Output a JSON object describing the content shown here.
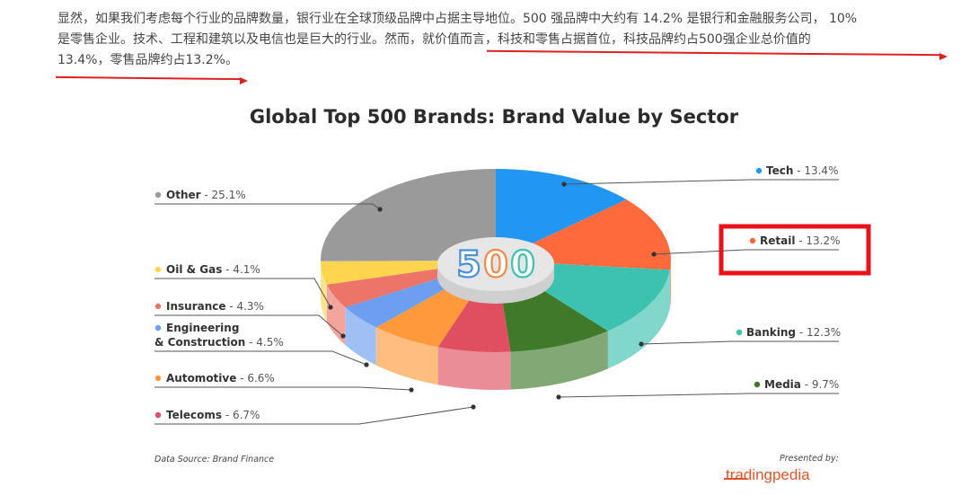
{
  "paragraph": {
    "line1": "显然，如果我们考虑每个行业的品牌数量，银行业在全球顶级品牌中占据主导地位。500 强品牌中大约有 14.2% 是银行和金融服务公司， 10%",
    "line2": "是零售企业。技术、工程和建筑以及电信也是巨大的行业。然而，就价值而言，科技和零售占据首位，科技品牌约占500强企业总价值的",
    "line3": "13.4%，零售品牌约占13.2%。"
  },
  "annotation_colors": {
    "underline": "#e02020",
    "highlight_box": "#e8121b"
  },
  "chart_data": {
    "type": "pie",
    "title": "Global Top 500 Brands: Brand Value by Sector",
    "center_label": "500",
    "unit": "%",
    "highlighted": "Retail",
    "slices": [
      {
        "label": "Tech",
        "value": 13.4,
        "color": "#2196f3",
        "display": "13.4%"
      },
      {
        "label": "Retail",
        "value": 13.2,
        "color": "#ff6a3d",
        "display": "13.2%"
      },
      {
        "label": "Banking",
        "value": 12.3,
        "color": "#3dc2b0",
        "display": "12.3%"
      },
      {
        "label": "Media",
        "value": 9.7,
        "color": "#3e7a2a",
        "display": "9.7%"
      },
      {
        "label": "Telecoms",
        "value": 6.7,
        "color": "#e04f5f",
        "display": "6.7%"
      },
      {
        "label": "Automotive",
        "value": 6.6,
        "color": "#ff9a3c",
        "display": "6.6%"
      },
      {
        "label": "Engineering\n& Construction",
        "value": 4.5,
        "color": "#6d9ef0",
        "display": "4.5%"
      },
      {
        "label": "Insurance",
        "value": 4.3,
        "color": "#ec7468",
        "display": "4.3%"
      },
      {
        "label": "Oil & Gas",
        "value": 4.1,
        "color": "#ffd54f",
        "display": "4.1%"
      },
      {
        "label": "Other",
        "value": 25.1,
        "color": "#9a9a9a",
        "display": "25.1%"
      }
    ],
    "center_label_colors": [
      "#4a90d9",
      "#f08a4b",
      "#3dc2b0"
    ]
  },
  "footer": {
    "source": "Data Source: Brand Finance",
    "presented_by": "Presented by:",
    "brand_name": "tradingpedia"
  }
}
